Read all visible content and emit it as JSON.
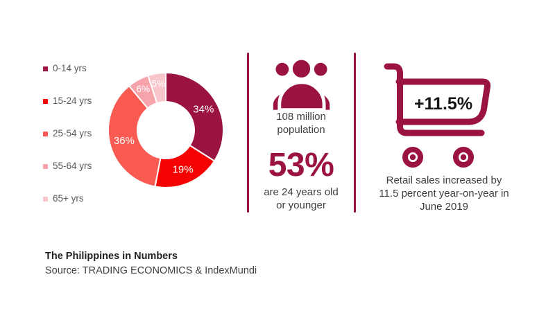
{
  "page": {
    "background": "#FFFFFF"
  },
  "colors": {
    "accent": "#9B1341",
    "text_dark": "#1F1F1F",
    "text_gray": "#3E3E3E",
    "legend_text": "#595959",
    "badge_text": "#151515",
    "slice_label": "#FFFFFF",
    "divider": "#9B1341"
  },
  "chart_data": {
    "type": "pie",
    "subtype": "donut",
    "categories": [
      "0-14 yrs",
      "15-24 yrs",
      "25-54 yrs",
      "55-64 yrs",
      "65+ yrs"
    ],
    "values": [
      34,
      19,
      36,
      6,
      5
    ],
    "unit": "%",
    "labels": [
      "34%",
      "19%",
      "36%",
      "6%",
      "5%"
    ],
    "colors": [
      "#9B1341",
      "#F50303",
      "#F95B52",
      "#F7A3AC",
      "#F9C6CC"
    ],
    "start_angle_deg": 0,
    "direction": "clockwise",
    "inner_radius_ratio": 0.49,
    "slice_border_color": "#FFFFFF",
    "legend_position": "left"
  },
  "population": {
    "icon": "people-group-icon",
    "line1": "108 million\npopulation",
    "stat": "53%",
    "line2": "are 24 years old\nor younger"
  },
  "retail": {
    "icon": "shopping-cart-icon",
    "badge": "+11.5%",
    "caption": "Retail sales increased by\n11.5 percent year-on-year in\nJune 2019"
  },
  "footer": {
    "title": "The Philippines in Numbers",
    "source": "Source: TRADING ECONOMICS & IndexMundi"
  }
}
